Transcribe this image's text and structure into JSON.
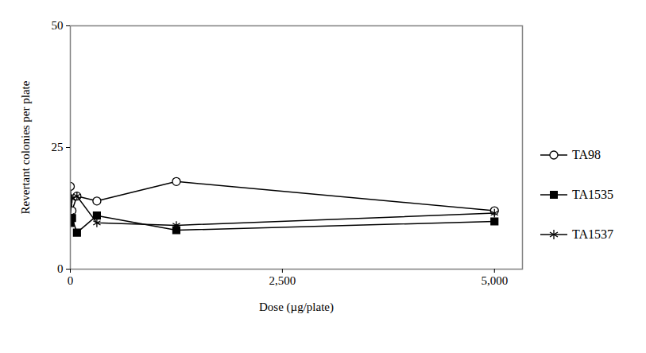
{
  "chart_data": {
    "type": "line",
    "x_label": "Dose (µg/plate)",
    "y_label": "Revertant colonies per plate",
    "x": [
      0,
      20,
      78,
      313,
      1250,
      5000
    ],
    "xlim": [
      0,
      5330
    ],
    "xticks": [
      0,
      {
        "value": 2500,
        "label": "2,500"
      },
      {
        "value": 5000,
        "label": "5,000"
      }
    ],
    "ylim": [
      0,
      50
    ],
    "yticks": [
      0,
      25,
      50
    ],
    "grid": false,
    "legend": "right",
    "series": [
      {
        "name": "TA98",
        "color": "#000000",
        "marker": "circle-open",
        "values": [
          17,
          12,
          15,
          14,
          18,
          12
        ]
      },
      {
        "name": "TA1535",
        "color": "#000000",
        "marker": "square",
        "values": [
          9.5,
          10.5,
          7.5,
          11,
          8,
          9.8
        ]
      },
      {
        "name": "TA1537",
        "color": "#000000",
        "marker": "asterisk",
        "values": [
          11,
          14.5,
          15,
          9.5,
          9,
          11.5
        ]
      }
    ]
  }
}
